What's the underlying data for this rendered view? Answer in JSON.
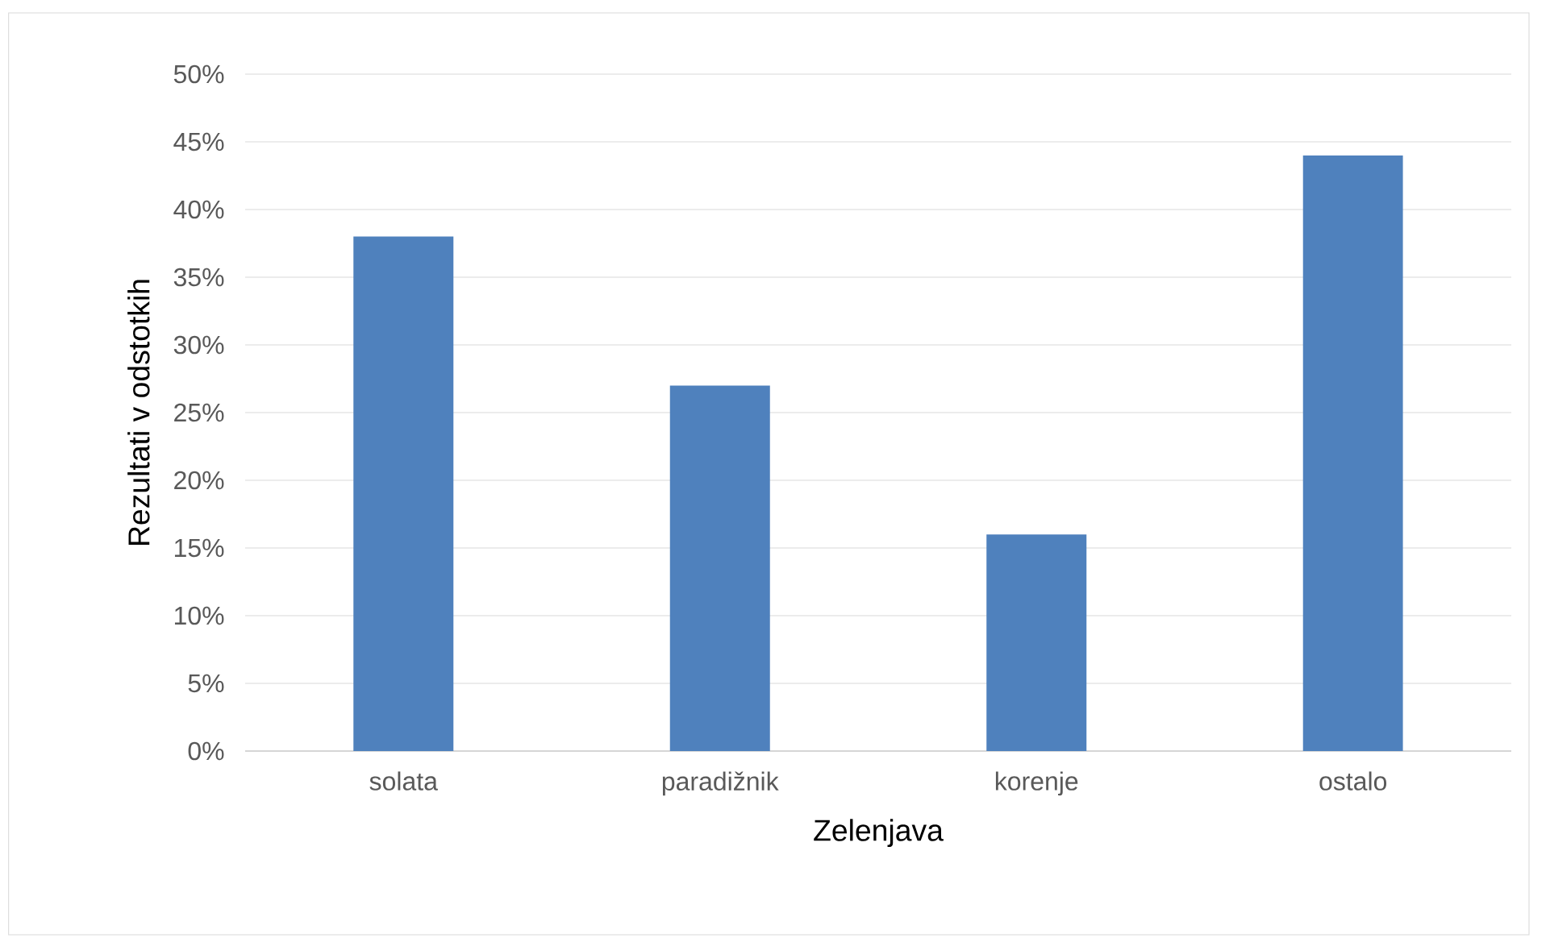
{
  "chart_data": {
    "type": "bar",
    "xlabel": "Zelenjava",
    "ylabel": "Rezultati v odstotkih",
    "categories": [
      "solata",
      "paradižnik",
      "korenje",
      "ostalo"
    ],
    "values": [
      38,
      27,
      16,
      44
    ],
    "color": "#4f81bd",
    "ylim": [
      0,
      50
    ],
    "yticks": [
      {
        "value": 0,
        "label": "0%"
      },
      {
        "value": 5,
        "label": "5%"
      },
      {
        "value": 10,
        "label": "10%"
      },
      {
        "value": 15,
        "label": "15%"
      },
      {
        "value": 20,
        "label": "20%"
      },
      {
        "value": 25,
        "label": "25%"
      },
      {
        "value": 30,
        "label": "30%"
      },
      {
        "value": 35,
        "label": "35%"
      },
      {
        "value": 40,
        "label": "40%"
      },
      {
        "value": 45,
        "label": "45%"
      },
      {
        "value": 50,
        "label": "50%"
      }
    ],
    "grid": "y"
  }
}
